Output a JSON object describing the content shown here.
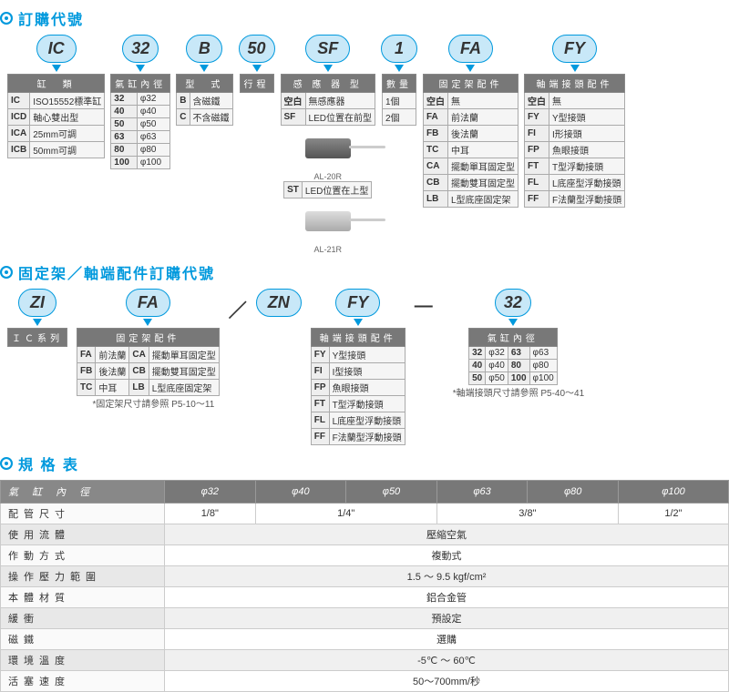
{
  "sections": {
    "order": "訂購代號",
    "accessory": "固定架／軸端配件訂購代號",
    "spec": "規 格 表"
  },
  "codes": {
    "ic": "IC",
    "c32": "32",
    "b": "B",
    "c50": "50",
    "sf": "SF",
    "c1": "1",
    "fa": "FA",
    "fy": "FY",
    "zi": "ZI",
    "zn": "ZN"
  },
  "headers": {
    "cylinder_type": "缸　類",
    "bore": "氣缸內徑",
    "type": "型　式",
    "stroke": "行程",
    "sensor": "感 應 器 型",
    "qty": "數量",
    "mount": "固定架配件",
    "rod": "軸端接頭配件",
    "ic_series": "ＩＣ系列"
  },
  "cylinder_types": [
    {
      "c": "IC",
      "d": "ISO15552標準缸"
    },
    {
      "c": "ICD",
      "d": "軸心雙出型"
    },
    {
      "c": "ICA",
      "d": "25mm可調"
    },
    {
      "c": "ICB",
      "d": "50mm可調"
    }
  ],
  "bores": [
    {
      "c": "32",
      "d": "φ32"
    },
    {
      "c": "40",
      "d": "φ40"
    },
    {
      "c": "50",
      "d": "φ50"
    },
    {
      "c": "63",
      "d": "φ63"
    },
    {
      "c": "80",
      "d": "φ80"
    },
    {
      "c": "100",
      "d": "φ100"
    }
  ],
  "types": [
    {
      "c": "B",
      "d": "含磁鐵"
    },
    {
      "c": "C",
      "d": "不含磁鐵"
    }
  ],
  "sensors": [
    {
      "c": "空白",
      "d": "無感應器"
    },
    {
      "c": "SF",
      "d": "LED位置在前型"
    },
    {
      "c": "ST",
      "d": "LED位置在上型"
    }
  ],
  "sensor_labels": {
    "al20r": "AL-20R",
    "al21r": "AL-21R"
  },
  "qty": [
    {
      "c": "1個"
    },
    {
      "c": "2個"
    }
  ],
  "mounts": [
    {
      "c": "空白",
      "d": "無"
    },
    {
      "c": "FA",
      "d": "前法蘭"
    },
    {
      "c": "FB",
      "d": "後法蘭"
    },
    {
      "c": "TC",
      "d": "中耳"
    },
    {
      "c": "CA",
      "d": "擺動單耳固定型"
    },
    {
      "c": "CB",
      "d": "擺動雙耳固定型"
    },
    {
      "c": "LB",
      "d": "L型底座固定架"
    }
  ],
  "mounts2": [
    {
      "c": "FA",
      "d": "前法蘭"
    },
    {
      "c": "FB",
      "d": "後法蘭"
    },
    {
      "c": "TC",
      "d": "中耳"
    },
    {
      "c": "CA",
      "d": "擺動單耳固定型"
    },
    {
      "c": "CB",
      "d": "擺動雙耳固定型"
    },
    {
      "c": "LB",
      "d": "L型底座固定架"
    }
  ],
  "rods": [
    {
      "c": "空白",
      "d": "無"
    },
    {
      "c": "FY",
      "d": "Y型接頭"
    },
    {
      "c": "FI",
      "d": "I形接頭"
    },
    {
      "c": "FP",
      "d": "魚眼接頭"
    },
    {
      "c": "FT",
      "d": "T型浮動接頭"
    },
    {
      "c": "FL",
      "d": "L底座型浮動接頭"
    },
    {
      "c": "FF",
      "d": "F法蘭型浮動接頭"
    }
  ],
  "rods2": [
    {
      "c": "FY",
      "d": "Y型接頭"
    },
    {
      "c": "FI",
      "d": "I型接頭"
    },
    {
      "c": "FP",
      "d": "魚眼接頭"
    },
    {
      "c": "FT",
      "d": "T型浮動接頭"
    },
    {
      "c": "FL",
      "d": "L底座型浮動接頭"
    },
    {
      "c": "FF",
      "d": "F法蘭型浮動接頭"
    }
  ],
  "bores2": [
    {
      "c": "32",
      "d": "φ32"
    },
    {
      "c": "40",
      "d": "φ40"
    },
    {
      "c": "50",
      "d": "φ50"
    },
    {
      "c": "63",
      "d": "φ63"
    },
    {
      "c": "80",
      "d": "φ80"
    },
    {
      "c": "100",
      "d": "φ100"
    }
  ],
  "notes": {
    "mount_ref": "*固定架尺寸請參照  P5-10〜11",
    "rod_ref": "*軸端接頭尺寸請參照  P5-40〜41"
  },
  "spec": {
    "bore_header": "氣 缸 內 徑",
    "cols": [
      "φ32",
      "φ40",
      "φ50",
      "φ63",
      "φ80",
      "φ100"
    ],
    "rows": [
      {
        "l": "配管尺寸",
        "v": [
          "1/8\"",
          "1/4\"",
          "3/8\"",
          "1/2\""
        ],
        "spans": [
          1,
          2,
          2,
          1
        ]
      },
      {
        "l": "使用流體",
        "v": [
          "壓縮空氣"
        ],
        "spans": [
          6
        ]
      },
      {
        "l": "作動方式",
        "v": [
          "複動式"
        ],
        "spans": [
          6
        ]
      },
      {
        "l": "操作壓力範圍",
        "v": [
          "1.5 〜 9.5 kgf/cm²"
        ],
        "spans": [
          6
        ]
      },
      {
        "l": "本體材質",
        "v": [
          "鋁合金管"
        ],
        "spans": [
          6
        ]
      },
      {
        "l": "緩衝",
        "v": [
          "預設定"
        ],
        "spans": [
          6
        ]
      },
      {
        "l": "磁鐵",
        "v": [
          "選購"
        ],
        "spans": [
          6
        ]
      },
      {
        "l": "環境溫度",
        "v": [
          "-5℃ 〜 60℃"
        ],
        "spans": [
          6
        ]
      },
      {
        "l": "活塞速度",
        "v": [
          "50〜700mm/秒"
        ],
        "spans": [
          6
        ]
      }
    ]
  }
}
